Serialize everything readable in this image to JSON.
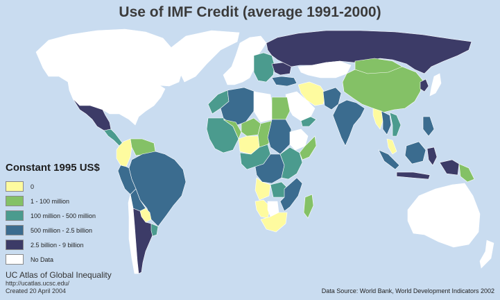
{
  "title": "Use of IMF Credit (average 1991-2000)",
  "legend": {
    "title": "Constant 1995 US$",
    "items": [
      {
        "label": "0",
        "color": "#fefb9f"
      },
      {
        "label": "1 - 100 million",
        "color": "#84c166"
      },
      {
        "label": "100 million - 500 million",
        "color": "#4b9b8e"
      },
      {
        "label": "500 million - 2.5 billion",
        "color": "#3b6c8f"
      },
      {
        "label": "2.5 billion - 9 billion",
        "color": "#3c3b67"
      },
      {
        "label": "No Data",
        "color": "#ffffff"
      }
    ]
  },
  "credits": {
    "org": "UC Atlas of Global Inequality",
    "url": "http://ucatlas.ucsc.edu/",
    "created": "Created 20 April 2004"
  },
  "source": "Data Source: World Bank, World Development Indicators 2002",
  "ocean_color": "#c9dcf0",
  "regions": [
    {
      "name": "Greenland",
      "class": 5
    },
    {
      "name": "Canada",
      "class": 5
    },
    {
      "name": "United States",
      "class": 5
    },
    {
      "name": "Mexico",
      "class": 4
    },
    {
      "name": "Central America",
      "class": 2
    },
    {
      "name": "Colombia",
      "class": 0
    },
    {
      "name": "Venezuela",
      "class": 1
    },
    {
      "name": "Brazil",
      "class": 3
    },
    {
      "name": "Peru",
      "class": 3
    },
    {
      "name": "Bolivia",
      "class": 3
    },
    {
      "name": "Paraguay",
      "class": 0
    },
    {
      "name": "Chile",
      "class": 5
    },
    {
      "name": "Argentina",
      "class": 4
    },
    {
      "name": "Uruguay",
      "class": 2
    },
    {
      "name": "Iceland",
      "class": 5
    },
    {
      "name": "Western Europe",
      "class": 5
    },
    {
      "name": "Eastern Europe",
      "class": 2
    },
    {
      "name": "Ukraine",
      "class": 4
    },
    {
      "name": "Russia",
      "class": 4
    },
    {
      "name": "Kazakhstan",
      "class": 5
    },
    {
      "name": "Turkey",
      "class": 3
    },
    {
      "name": "Iran",
      "class": 0
    },
    {
      "name": "Saudi Arabia",
      "class": 5
    },
    {
      "name": "Yemen",
      "class": 2
    },
    {
      "name": "Pakistan",
      "class": 3
    },
    {
      "name": "India",
      "class": 3
    },
    {
      "name": "China",
      "class": 1
    },
    {
      "name": "Mongolia",
      "class": 1
    },
    {
      "name": "Myanmar",
      "class": 0
    },
    {
      "name": "Thailand",
      "class": 3
    },
    {
      "name": "Vietnam",
      "class": 2
    },
    {
      "name": "Korea",
      "class": 4
    },
    {
      "name": "Japan",
      "class": 5
    },
    {
      "name": "Philippines",
      "class": 3
    },
    {
      "name": "Malaysia",
      "class": 0
    },
    {
      "name": "Sumatra",
      "class": 3
    },
    {
      "name": "Borneo",
      "class": 3
    },
    {
      "name": "Java",
      "class": 4
    },
    {
      "name": "Sulawesi",
      "class": 4
    },
    {
      "name": "New Guinea",
      "class": 4
    },
    {
      "name": "Papua New Guinea",
      "class": 1
    },
    {
      "name": "Australia",
      "class": 5
    },
    {
      "name": "New Zealand",
      "class": 5
    },
    {
      "name": "Morocco",
      "class": 2
    },
    {
      "name": "Algeria",
      "class": 3
    },
    {
      "name": "Libya",
      "class": 5
    },
    {
      "name": "Egypt",
      "class": 1
    },
    {
      "name": "West Africa",
      "class": 2
    },
    {
      "name": "Mali",
      "class": 1
    },
    {
      "name": "Niger",
      "class": 1
    },
    {
      "name": "Nigeria",
      "class": 0
    },
    {
      "name": "Chad",
      "class": 1
    },
    {
      "name": "Sudan",
      "class": 3
    },
    {
      "name": "Ethiopia",
      "class": 5
    },
    {
      "name": "Somalia",
      "class": 1
    },
    {
      "name": "Central Africa",
      "class": 2
    },
    {
      "name": "Congo DR",
      "class": 3
    },
    {
      "name": "East Africa",
      "class": 2
    },
    {
      "name": "Angola",
      "class": 0
    },
    {
      "name": "Namibia",
      "class": 0
    },
    {
      "name": "Zambia",
      "class": 2
    },
    {
      "name": "Botswana",
      "class": 5
    },
    {
      "name": "South Africa",
      "class": 0
    },
    {
      "name": "Mozambique",
      "class": 3
    },
    {
      "name": "Madagascar",
      "class": 1
    }
  ]
}
